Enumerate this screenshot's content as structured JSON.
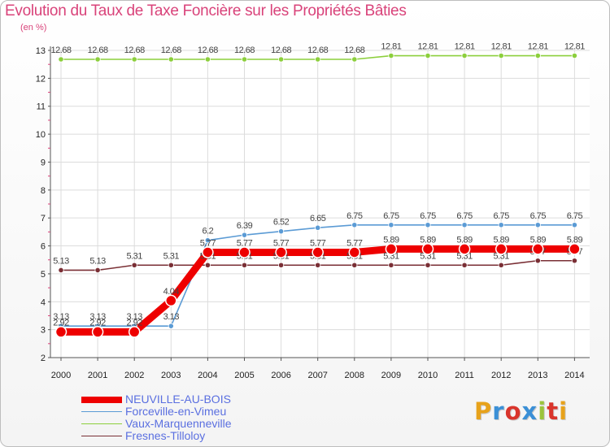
{
  "header": {
    "title": "Evolution du Taux de Taxe Foncière sur les Propriétés Bâties",
    "unit": "(en %)"
  },
  "logo": {
    "text": "Proxiti",
    "colors": [
      "#e7a21b",
      "#3a8fd6",
      "#d9352c",
      "#3a8fd6",
      "#9bc43c",
      "#d9352c",
      "#e7a21b"
    ]
  },
  "chart_data": {
    "type": "line",
    "title": "Evolution du Taux de Taxe Foncière sur les Propriétés Bâties",
    "ylabel": "(en %)",
    "xlabel": "",
    "ylim": [
      2,
      13
    ],
    "yticks": [
      2,
      3,
      4,
      5,
      6,
      7,
      8,
      9,
      10,
      11,
      12,
      13
    ],
    "grid": true,
    "legend_position": "bottom-left",
    "x": [
      "2000",
      "2001",
      "2002",
      "2003",
      "2004",
      "2005",
      "2006",
      "2007",
      "2008",
      "2009",
      "2010",
      "2011",
      "2012",
      "2013",
      "2014"
    ],
    "series": [
      {
        "name": "Vaux-Marquenneville",
        "color": "#8ccf3c",
        "values": [
          12.68,
          12.68,
          12.68,
          12.68,
          12.68,
          12.68,
          12.68,
          12.68,
          12.68,
          12.81,
          12.81,
          12.81,
          12.81,
          12.81,
          12.81
        ],
        "labels": [
          "12.68",
          "12.68",
          "12.68",
          "12.68",
          "12.68",
          "12.68",
          "12.68",
          "12.68",
          "12.68",
          "12.81",
          "12.81",
          "12.81",
          "12.81",
          "12.81",
          "12.81"
        ]
      },
      {
        "name": "Forceville-en-Vimeu",
        "color": "#5b9bd5",
        "values": [
          3.13,
          3.13,
          3.13,
          3.13,
          6.2,
          6.39,
          6.52,
          6.65,
          6.75,
          6.75,
          6.75,
          6.75,
          6.75,
          6.75,
          6.75
        ],
        "labels": [
          "3.13",
          "3.13",
          "3.13",
          "3.13",
          "6.2",
          "6.39",
          "6.52",
          "6.65",
          "6.75",
          "6.75",
          "6.75",
          "6.75",
          "6.75",
          "6.75",
          "6.75"
        ]
      },
      {
        "name": "Fresnes-Tilloloy",
        "color": "#7a2f35",
        "values": [
          5.13,
          5.13,
          5.31,
          5.31,
          5.31,
          5.31,
          5.31,
          5.31,
          5.31,
          5.31,
          5.31,
          5.31,
          5.31,
          5.47,
          5.47
        ],
        "labels": [
          "5.13",
          "5.13",
          "5.31",
          "5.31",
          "5.31",
          "5.31",
          "5.31",
          "5.31",
          "5.31",
          "5.31",
          "5.31",
          "5.31",
          "5.31",
          "5.47",
          "5.47"
        ]
      },
      {
        "name": "NEUVILLE-AU-BOIS",
        "color": "#ee0000",
        "values": [
          2.92,
          2.92,
          2.92,
          4.04,
          5.77,
          5.77,
          5.77,
          5.77,
          5.77,
          5.89,
          5.89,
          5.89,
          5.89,
          5.89,
          5.89
        ],
        "labels": [
          "2.92",
          "2.92",
          "2.92",
          "4.04",
          "5.77",
          "5.77",
          "5.77",
          "5.77",
          "5.77",
          "5.89",
          "5.89",
          "5.89",
          "5.89",
          "5.89",
          "5.89"
        ]
      }
    ],
    "legend": [
      "NEUVILLE-AU-BOIS",
      "Forceville-en-Vimeu",
      "Vaux-Marquenneville",
      "Fresnes-Tilloloy"
    ]
  }
}
